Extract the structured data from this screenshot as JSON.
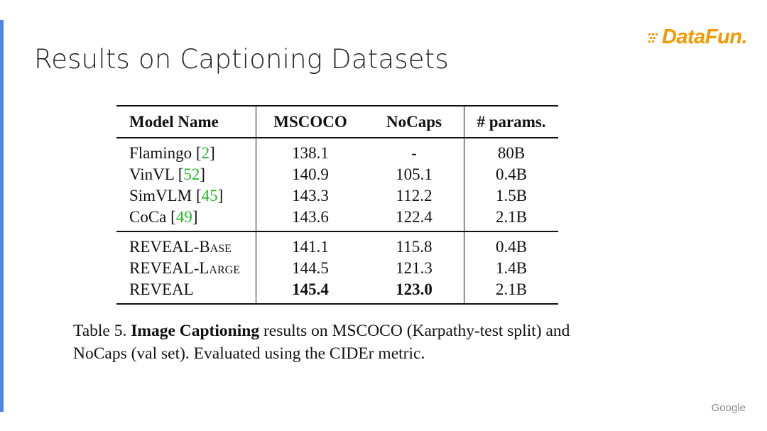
{
  "slide": {
    "title": "Results on Captioning Datasets"
  },
  "logo": {
    "text": "DataFun."
  },
  "footer": {
    "brand": "Google"
  },
  "colors": {
    "accent_bar": "#4a86e8",
    "logo": "#f39800",
    "citation": "#22b822"
  },
  "table": {
    "headers": [
      "Model Name",
      "MSCOCO",
      "NoCaps",
      "# params."
    ],
    "group1": [
      {
        "name": "Flamingo",
        "ref": "2",
        "mscoco": "138.1",
        "nocaps": "-",
        "params": "80B"
      },
      {
        "name": "VinVL",
        "ref": "52",
        "mscoco": "140.9",
        "nocaps": "105.1",
        "params": "0.4B"
      },
      {
        "name": "SimVLM",
        "ref": "45",
        "mscoco": "143.3",
        "nocaps": "112.2",
        "params": "1.5B"
      },
      {
        "name": "CoCa",
        "ref": "49",
        "mscoco": "143.6",
        "nocaps": "122.4",
        "params": "2.1B"
      }
    ],
    "group2": [
      {
        "name": "REVEAL-Base",
        "mscoco": "141.1",
        "nocaps": "115.8",
        "params": "0.4B"
      },
      {
        "name": "REVEAL-Large",
        "mscoco": "144.5",
        "nocaps": "121.3",
        "params": "1.4B"
      },
      {
        "name": "REVEAL",
        "mscoco": "145.4",
        "nocaps": "123.0",
        "params": "2.1B",
        "best": true
      }
    ]
  },
  "caption": {
    "prefix": "Table 5. ",
    "bold": "Image Captioning",
    "rest": " results on MSCOCO (Karpathy-test split) and NoCaps (val set). Evaluated using the CIDEr metric."
  }
}
